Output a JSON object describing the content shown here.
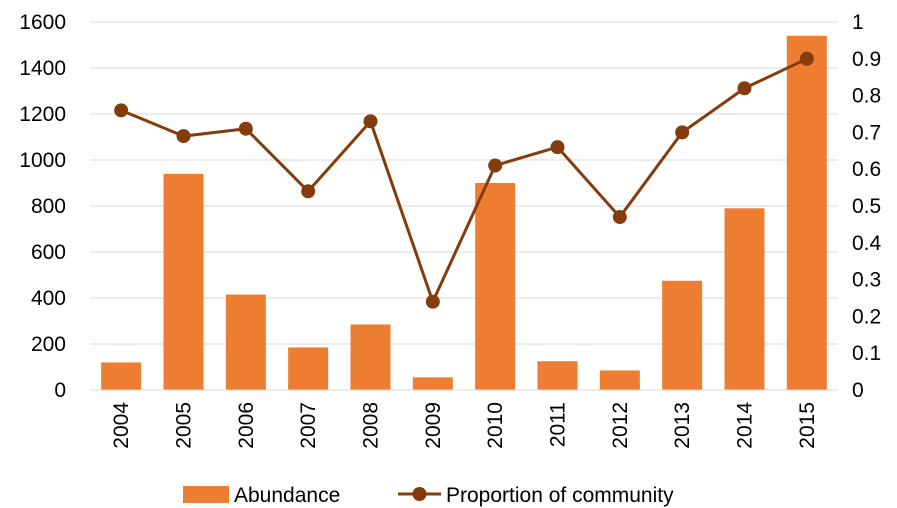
{
  "chart_data": {
    "type": "bar",
    "categories": [
      "2004",
      "2005",
      "2006",
      "2007",
      "2008",
      "2009",
      "2010",
      "2011",
      "2012",
      "2013",
      "2014",
      "2015"
    ],
    "series": [
      {
        "name": "Abundance",
        "type": "bar",
        "axis": "left",
        "color": "#ED7D31",
        "values": [
          120,
          940,
          415,
          185,
          285,
          55,
          900,
          125,
          85,
          475,
          790,
          1540
        ]
      },
      {
        "name": "Proportion of community",
        "type": "line",
        "axis": "right",
        "color": "#843C0C",
        "values": [
          0.76,
          0.69,
          0.71,
          0.54,
          0.73,
          0.24,
          0.61,
          0.66,
          0.47,
          0.7,
          0.82,
          0.9
        ]
      }
    ],
    "y_left": {
      "min": 0,
      "max": 1600,
      "ticks": [
        "0",
        "200",
        "400",
        "600",
        "800",
        "1000",
        "1200",
        "1400",
        "1600"
      ]
    },
    "y_right": {
      "min": 0,
      "max": 1,
      "ticks": [
        "0",
        "0.1",
        "0.2",
        "0.3",
        "0.4",
        "0.5",
        "0.6",
        "0.7",
        "0.8",
        "0.9",
        "1"
      ]
    },
    "grid": true,
    "legend": "bottom",
    "title": "",
    "xlabel": "",
    "ylabel": "",
    "gridline_color": "#D9D9D9"
  }
}
